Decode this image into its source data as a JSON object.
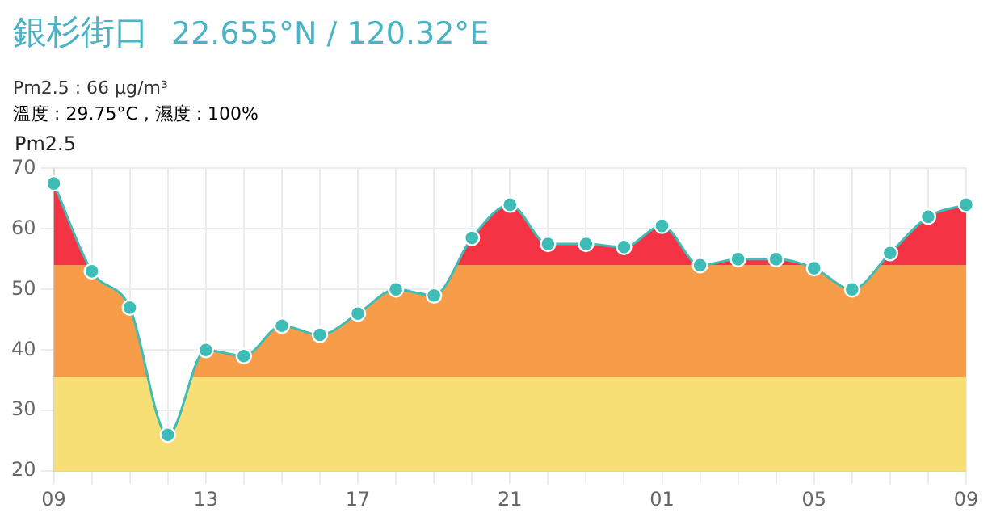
{
  "chart_data": {
    "type": "area",
    "title": "銀杉街口",
    "subtitle": "22.655°N / 120.32°E",
    "annotations": [
      "Pm2.5 : 66 μg/m³",
      "溫度 : 29.75°C , 濕度 : 100%"
    ],
    "ylabel": "Pm2.5",
    "categories": [
      "09",
      null,
      null,
      null,
      "13",
      null,
      null,
      null,
      "17",
      null,
      null,
      null,
      "21",
      null,
      null,
      null,
      "01",
      null,
      null,
      null,
      "05",
      null,
      null,
      null,
      "09"
    ],
    "series": [
      {
        "color": "#3dbdb5",
        "values": [
          67.5,
          53,
          47,
          26,
          40,
          39,
          44,
          42.5,
          46,
          50,
          49,
          58.5,
          64,
          57.5,
          57.5,
          57,
          60.5,
          54,
          55,
          55,
          53.5,
          50,
          56,
          62,
          64
        ]
      }
    ],
    "bands": [
      {
        "axis": "y",
        "from": 20,
        "to": 35.5,
        "color": "#f7dc6a"
      },
      {
        "axis": "y",
        "from": 35.5,
        "to": 54,
        "color": "#f7953a"
      },
      {
        "axis": "y",
        "from": 54,
        "to": 70,
        "color": "#f42336"
      }
    ],
    "ylim": [
      20,
      70
    ],
    "yticks": [
      20,
      30,
      40,
      50,
      60,
      70
    ],
    "grid": true,
    "legend": false,
    "marker": "circle"
  }
}
